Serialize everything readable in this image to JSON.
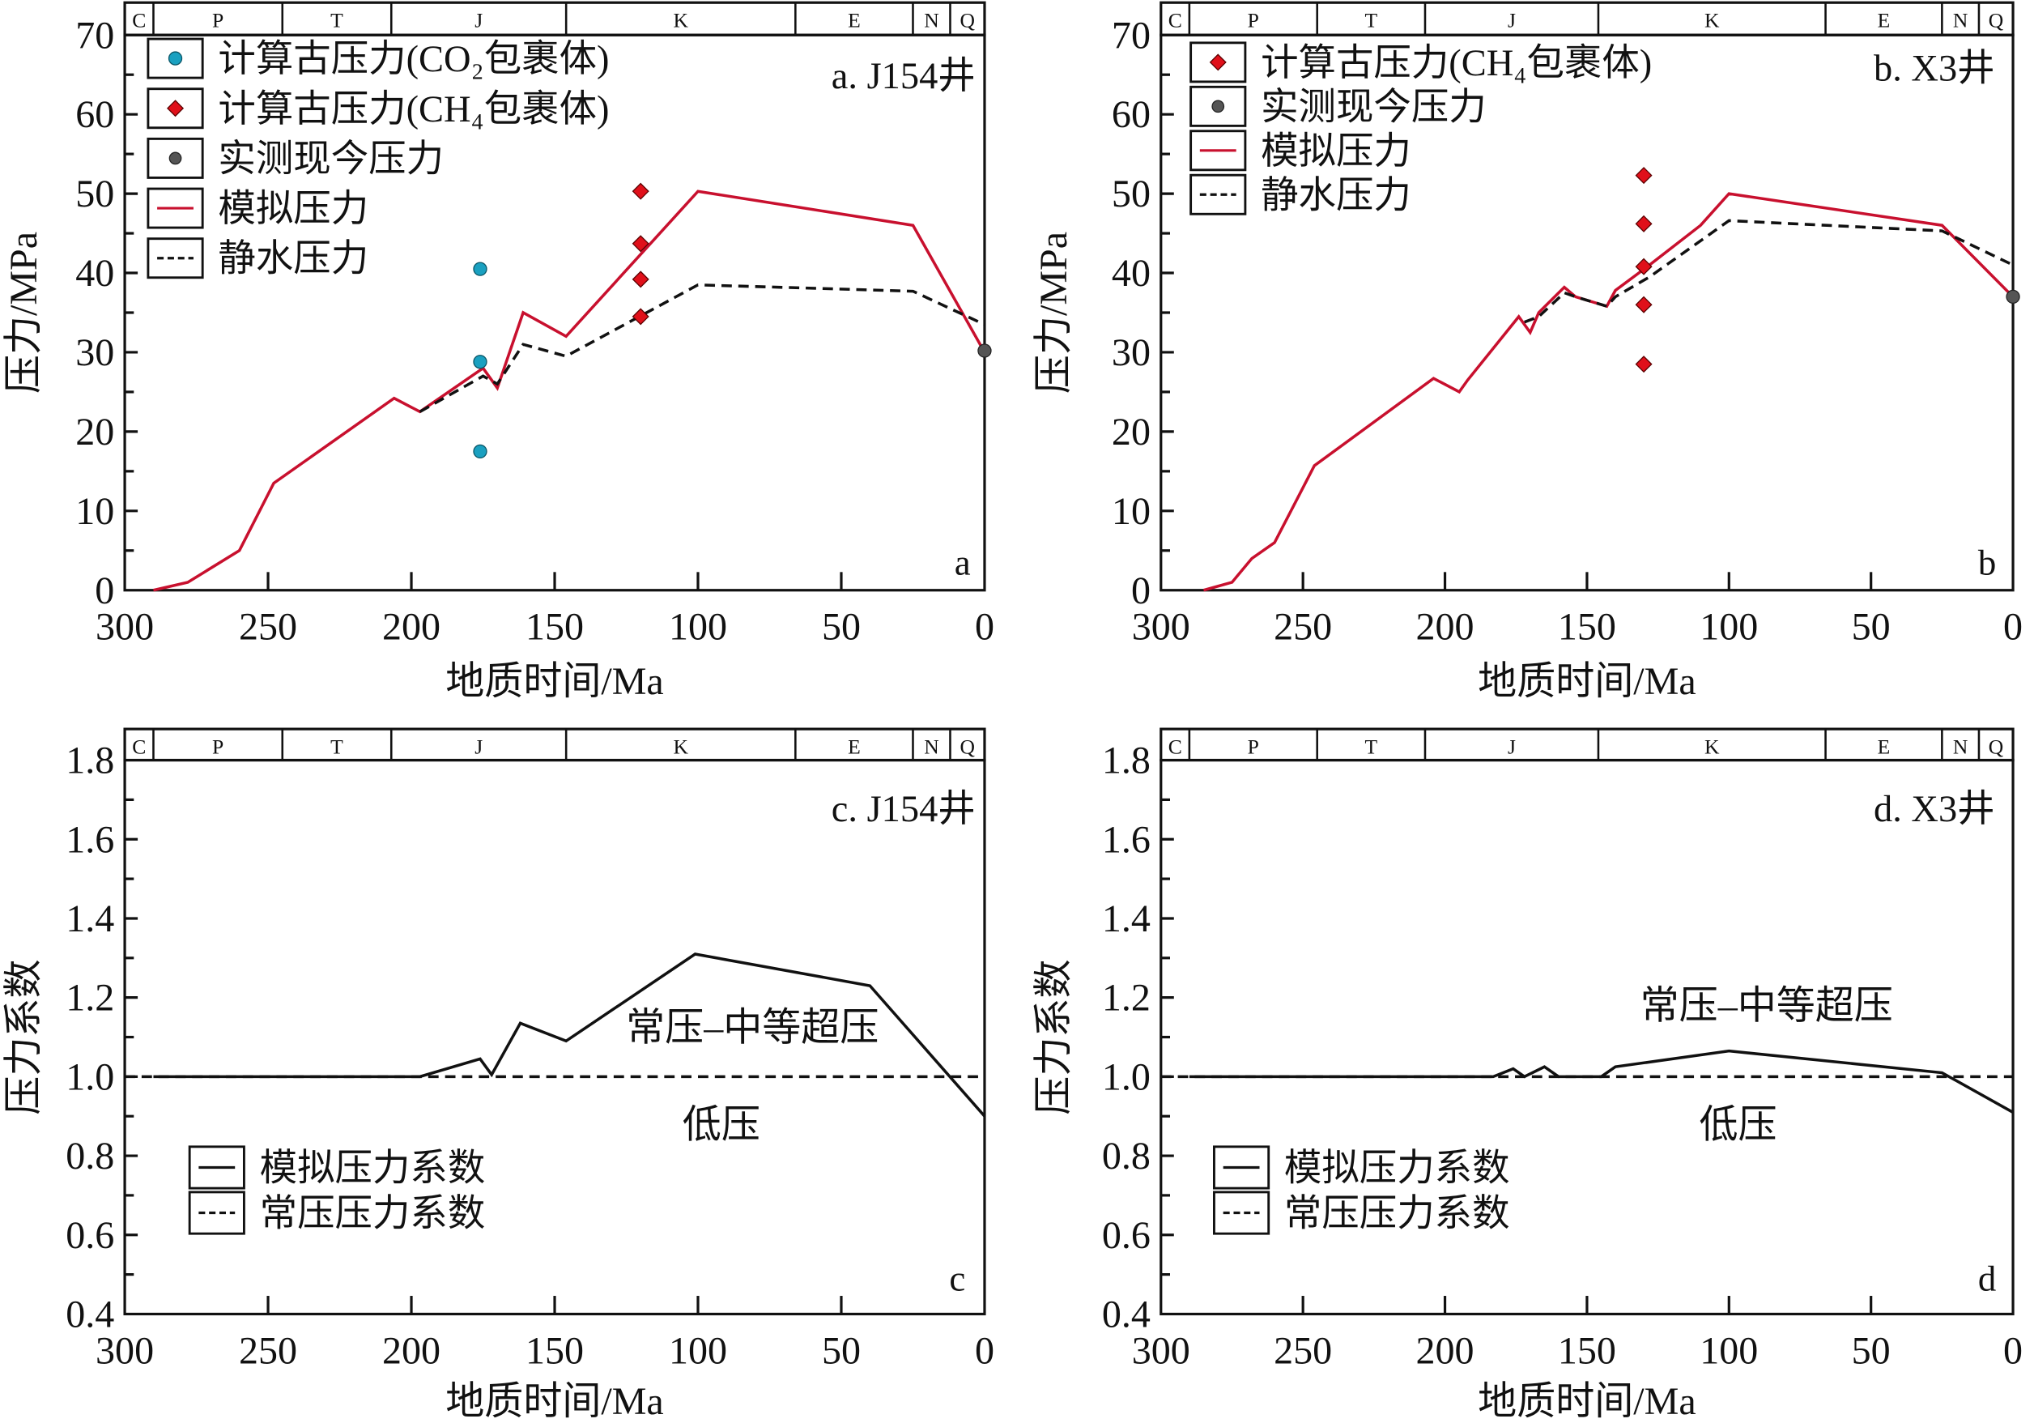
{
  "colors": {
    "simulated": "#c8102e",
    "hydrostatic": "#111111",
    "co2_marker": "#1aa0c0",
    "ch4_marker": "#e0101a",
    "measured_marker": "#555555",
    "axis": "#111111"
  },
  "geologic_periods": [
    "C",
    "P",
    "T",
    "J",
    "K",
    "E",
    "N",
    "Q"
  ],
  "chart_data": [
    {
      "id": "a",
      "type": "line",
      "title": "a. J154井",
      "corner_label": "a",
      "xlabel": "地质时间/Ma",
      "ylabel": "压力/MPa",
      "xlim": [
        300,
        0
      ],
      "ylim": [
        0,
        70
      ],
      "xticks": [
        "300",
        "250",
        "200",
        "150",
        "100",
        "50",
        "0"
      ],
      "yticks": [
        "0",
        "10",
        "20",
        "30",
        "40",
        "50",
        "60",
        "70"
      ],
      "legend": [
        {
          "label": "计算古压力(CO₂包裹体)",
          "kind": "co2"
        },
        {
          "label": "计算古压力(CH₄包裹体)",
          "kind": "ch4"
        },
        {
          "label": "实测现今压力",
          "kind": "measured"
        },
        {
          "label": "模拟压力",
          "kind": "simulated"
        },
        {
          "label": "静水压力",
          "kind": "hydrostatic"
        }
      ],
      "series": [
        {
          "name": "模拟压力",
          "kind": "simulated",
          "x": [
            290,
            278,
            260,
            248,
            206,
            197,
            175,
            170,
            161,
            146,
            100,
            25,
            0
          ],
          "y": [
            0,
            1,
            5,
            13.5,
            24.2,
            22.5,
            28,
            25.5,
            35,
            32,
            50.3,
            46,
            30
          ]
        },
        {
          "name": "静水压力",
          "kind": "hydrostatic",
          "x": [
            197,
            175,
            170,
            161,
            146,
            100,
            25,
            0
          ],
          "y": [
            22.5,
            27,
            26,
            31,
            29.5,
            38.5,
            37.7,
            33.5
          ]
        },
        {
          "name": "计算古压力(CO₂包裹体)",
          "kind": "co2",
          "x": [
            176,
            176,
            176
          ],
          "y": [
            40.5,
            28.8,
            17.5
          ]
        },
        {
          "name": "计算古压力(CH₄包裹体)",
          "kind": "ch4",
          "x": [
            120,
            120,
            120,
            120
          ],
          "y": [
            50.3,
            43.7,
            39.2,
            34.5
          ]
        },
        {
          "name": "实测现今压力",
          "kind": "measured",
          "x": [
            0
          ],
          "y": [
            30.2
          ]
        }
      ]
    },
    {
      "id": "b",
      "type": "line",
      "title": "b. X3井",
      "corner_label": "b",
      "xlabel": "地质时间/Ma",
      "ylabel": "压力/MPa",
      "xlim": [
        300,
        0
      ],
      "ylim": [
        0,
        70
      ],
      "xticks": [
        "300",
        "250",
        "200",
        "150",
        "100",
        "50",
        "0"
      ],
      "yticks": [
        "0",
        "10",
        "20",
        "30",
        "40",
        "50",
        "60",
        "70"
      ],
      "legend": [
        {
          "label": "计算古压力(CH₄包裹体)",
          "kind": "ch4"
        },
        {
          "label": "实测现今压力",
          "kind": "measured"
        },
        {
          "label": "模拟压力",
          "kind": "simulated"
        },
        {
          "label": "静水压力",
          "kind": "hydrostatic"
        }
      ],
      "series": [
        {
          "name": "模拟压力",
          "kind": "simulated",
          "x": [
            285,
            275,
            268,
            260,
            246,
            204,
            195,
            192,
            174,
            170,
            167,
            158,
            154,
            143,
            140,
            128,
            110,
            100,
            25,
            0
          ],
          "y": [
            0,
            1,
            4,
            6,
            15.7,
            26.7,
            25,
            26.5,
            34.5,
            32.5,
            35,
            38.2,
            37,
            35.8,
            37.8,
            41,
            46,
            50,
            46,
            37
          ]
        },
        {
          "name": "静水压力",
          "kind": "hydrostatic",
          "x": [
            172,
            167,
            158,
            154,
            143,
            140,
            128,
            100,
            25,
            0
          ],
          "y": [
            33.8,
            34.5,
            37.5,
            37,
            35.8,
            37,
            39.5,
            46.6,
            45.3,
            41
          ]
        },
        {
          "name": "计算古压力(CH₄包裹体)",
          "kind": "ch4",
          "x": [
            130,
            130,
            130,
            130,
            130
          ],
          "y": [
            52.3,
            46.2,
            40.8,
            36,
            28.5
          ]
        },
        {
          "name": "实测现今压力",
          "kind": "measured",
          "x": [
            0
          ],
          "y": [
            37
          ]
        }
      ]
    },
    {
      "id": "c",
      "type": "line",
      "title": "c. J154井",
      "corner_label": "c",
      "xlabel": "地质时间/Ma",
      "ylabel": "压力系数",
      "xlim": [
        300,
        0
      ],
      "ylim": [
        0.4,
        1.8
      ],
      "xticks": [
        "300",
        "250",
        "200",
        "150",
        "100",
        "50",
        "0"
      ],
      "yticks": [
        "0.4",
        "0.6",
        "0.8",
        "1.0",
        "1.2",
        "1.4",
        "1.6",
        "1.8"
      ],
      "zone_upper": "常压–中等超压",
      "zone_lower": "低压",
      "legend": [
        {
          "label": "模拟压力系数",
          "kind": "coef"
        },
        {
          "label": "常压压力系数",
          "kind": "normal"
        }
      ],
      "series": [
        {
          "name": "模拟压力系数",
          "kind": "coef",
          "x": [
            290,
            197,
            176,
            172,
            162,
            146,
            101,
            40,
            0
          ],
          "y": [
            1.0,
            1.0,
            1.045,
            1.005,
            1.135,
            1.09,
            1.31,
            1.23,
            0.9
          ]
        },
        {
          "name": "常压压力系数",
          "kind": "normal",
          "x": [
            300,
            0
          ],
          "y": [
            1.0,
            1.0
          ]
        }
      ]
    },
    {
      "id": "d",
      "type": "line",
      "title": "d. X3井",
      "corner_label": "d",
      "xlabel": "地质时间/Ma",
      "ylabel": "压力系数",
      "xlim": [
        300,
        0
      ],
      "ylim": [
        0.4,
        1.8
      ],
      "xticks": [
        "300",
        "250",
        "200",
        "150",
        "100",
        "50",
        "0"
      ],
      "yticks": [
        "0.4",
        "0.6",
        "0.8",
        "1.0",
        "1.2",
        "1.4",
        "1.6",
        "1.8"
      ],
      "zone_upper": "常压–中等超压",
      "zone_lower": "低压",
      "legend": [
        {
          "label": "模拟压力系数",
          "kind": "coef"
        },
        {
          "label": "常压压力系数",
          "kind": "normal"
        }
      ],
      "series": [
        {
          "name": "模拟压力系数",
          "kind": "coef",
          "x": [
            290,
            183,
            176,
            172,
            165,
            160,
            157,
            145,
            140,
            100,
            25,
            0
          ],
          "y": [
            1.0,
            1.0,
            1.02,
            1.0,
            1.025,
            1.0,
            1.0,
            1.0,
            1.025,
            1.065,
            1.01,
            0.91
          ]
        },
        {
          "name": "常压压力系数",
          "kind": "normal",
          "x": [
            300,
            0
          ],
          "y": [
            1.0,
            1.0
          ]
        }
      ]
    }
  ]
}
